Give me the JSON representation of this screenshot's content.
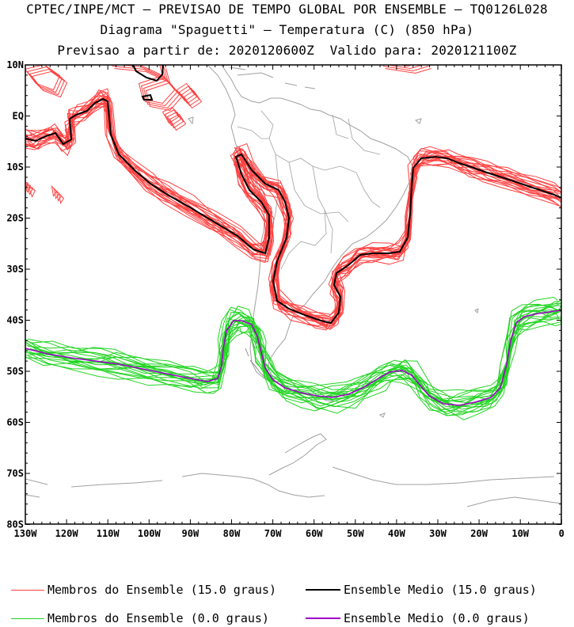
{
  "header": {
    "line1": "CPTEC/INPE/MCT – PREVISAO DE TEMPO GLOBAL POR ENSEMBLE – TQ0126L028",
    "line2": "Diagrama \"Spaguetti\" – Temperatura (C) (850 hPa)",
    "line3": "Previsao a partir de: 2020120600Z  Valido para: 2020121100Z"
  },
  "axes": {
    "lat_labels": [
      "10N",
      "EQ",
      "10S",
      "20S",
      "30S",
      "40S",
      "50S",
      "60S",
      "70S",
      "80S"
    ],
    "lon_labels": [
      "130W",
      "120W",
      "110W",
      "100W",
      "90W",
      "80W",
      "70W",
      "60W",
      "50W",
      "40W",
      "30W",
      "20W",
      "10W",
      "0"
    ]
  },
  "colors": {
    "members_15": "#ff4040",
    "mean_15": "#000000",
    "members_0": "#22d422",
    "mean_0": "#a000c8",
    "coast": "#a0a0a0"
  },
  "legend": [
    {
      "label": "Membros do Ensemble (15.0 graus)",
      "color": "#ff4040"
    },
    {
      "label": "Ensemble Medio (15.0 graus)",
      "color": "#000000"
    },
    {
      "label": "Membros do Ensemble (0.0 graus)",
      "color": "#22d422"
    },
    {
      "label": "Ensemble Medio (0.0 graus)",
      "color": "#a000c8"
    }
  ]
}
